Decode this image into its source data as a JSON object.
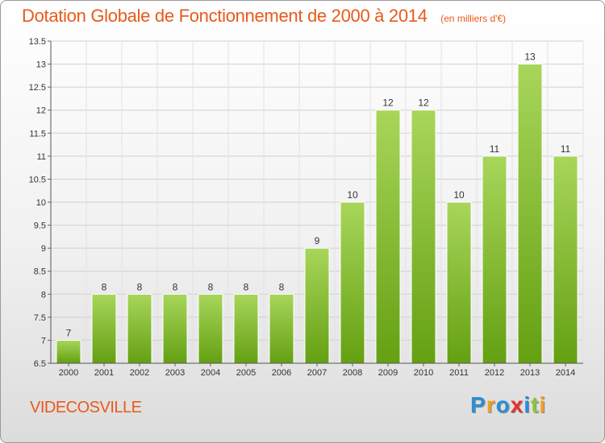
{
  "chart_data": {
    "type": "bar",
    "title": "Dotation Globale de Fonctionnement de 2000 à 2014",
    "subtitle": "(en milliers d'€)",
    "categories": [
      "2000",
      "2001",
      "2002",
      "2003",
      "2004",
      "2005",
      "2006",
      "2007",
      "2008",
      "2009",
      "2010",
      "2011",
      "2012",
      "2013",
      "2014"
    ],
    "values": [
      7,
      8,
      8,
      8,
      8,
      8,
      8,
      9,
      10,
      12,
      12,
      10,
      11,
      13,
      11
    ],
    "data_labels": [
      "7",
      "8",
      "8",
      "8",
      "8",
      "8",
      "8",
      "9",
      "10",
      "12",
      "12",
      "10",
      "11",
      "13",
      "11"
    ],
    "ylim": [
      6.5,
      13.5
    ],
    "yticks": [
      6.5,
      7,
      7.5,
      8,
      8.5,
      9,
      9.5,
      10,
      10.5,
      11,
      11.5,
      12,
      12.5,
      13,
      13.5
    ],
    "ytick_labels": [
      "6.5",
      "7",
      "7.5",
      "8",
      "8.5",
      "9",
      "9.5",
      "10",
      "10.5",
      "11",
      "11.5",
      "12",
      "12.5",
      "13",
      "13.5"
    ],
    "grid": true,
    "xlabel": "",
    "ylabel": "",
    "colors": {
      "bar_light": "#a8d65a",
      "bar_dark": "#64a012",
      "title": "#e85a1b",
      "grid": "#d0d0d0"
    }
  },
  "footer": {
    "commune": "VIDECOSVILLE",
    "logo_letters": [
      {
        "char": "P",
        "color": "#2a8fd6"
      },
      {
        "char": "r",
        "color": "#f0a020"
      },
      {
        "char": "o",
        "color": "#2a8fd6"
      },
      {
        "char": "x",
        "color": "#e83030"
      },
      {
        "char": "i",
        "color": "#2a8fd6"
      },
      {
        "char": "t",
        "color": "#8cc63f"
      },
      {
        "char": "i",
        "color": "#f0a020"
      }
    ]
  }
}
